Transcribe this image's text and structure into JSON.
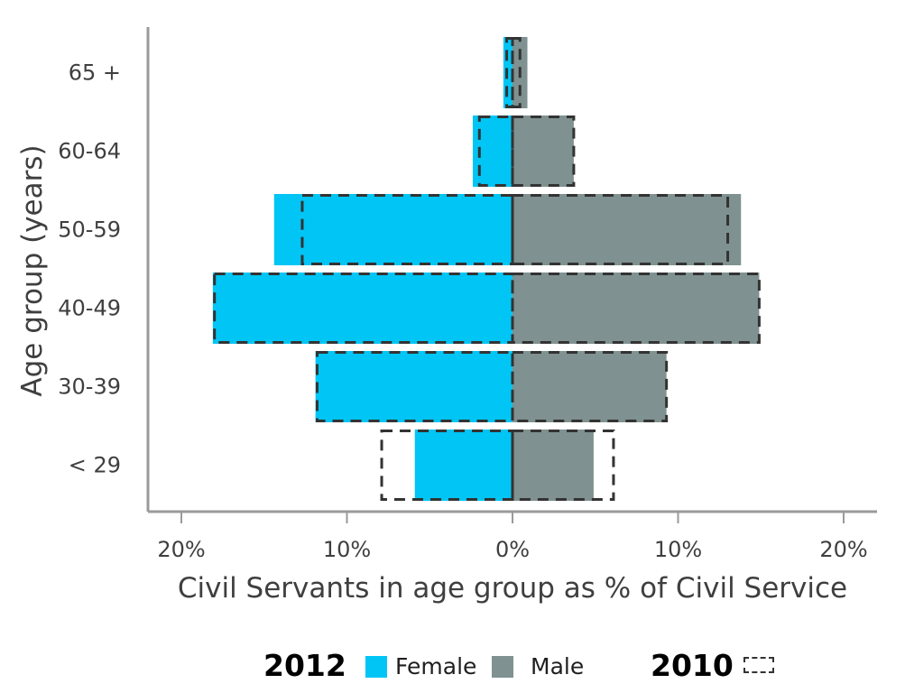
{
  "chart_data": {
    "type": "bar",
    "orientation": "horizontal",
    "subtype": "population-pyramid",
    "categories": [
      "< 29",
      "30-39",
      "40-49",
      "50-59",
      "60-64",
      "65 +"
    ],
    "xlabel": "Civil Servants in age group as % of Civil Service",
    "ylabel": "Age group (years)",
    "xlim": [
      -22,
      22
    ],
    "xticks": [
      {
        "value": -20,
        "label": "20%"
      },
      {
        "value": -10,
        "label": "10%"
      },
      {
        "value": 0,
        "label": "0%"
      },
      {
        "value": 10,
        "label": "10%"
      },
      {
        "value": 20,
        "label": "20%"
      }
    ],
    "grid": false,
    "legend_position": "bottom",
    "series": [
      {
        "name": "Female",
        "year": "2012",
        "side": "left",
        "style": "filled",
        "color": "#00c5f5",
        "values": [
          5.9,
          11.9,
          18.1,
          14.4,
          2.4,
          0.55
        ]
      },
      {
        "name": "Male",
        "year": "2012",
        "side": "right",
        "style": "filled",
        "color": "#7f9190",
        "values": [
          4.9,
          9.3,
          14.9,
          13.8,
          3.7,
          0.9
        ]
      },
      {
        "name": "Female",
        "year": "2010",
        "side": "left",
        "style": "dashed-outline",
        "color": "#333333",
        "values": [
          7.9,
          11.8,
          18.0,
          12.7,
          2.0,
          0.35
        ]
      },
      {
        "name": "Male",
        "year": "2010",
        "side": "right",
        "style": "dashed-outline",
        "color": "#333333",
        "values": [
          6.1,
          9.3,
          14.9,
          13.0,
          3.7,
          0.45
        ]
      }
    ]
  },
  "legend": {
    "year_primary": "2012",
    "female_label": "Female",
    "male_label": "Male",
    "year_outline": "2010",
    "female_color": "#00c5f5",
    "male_color": "#7f9190"
  }
}
